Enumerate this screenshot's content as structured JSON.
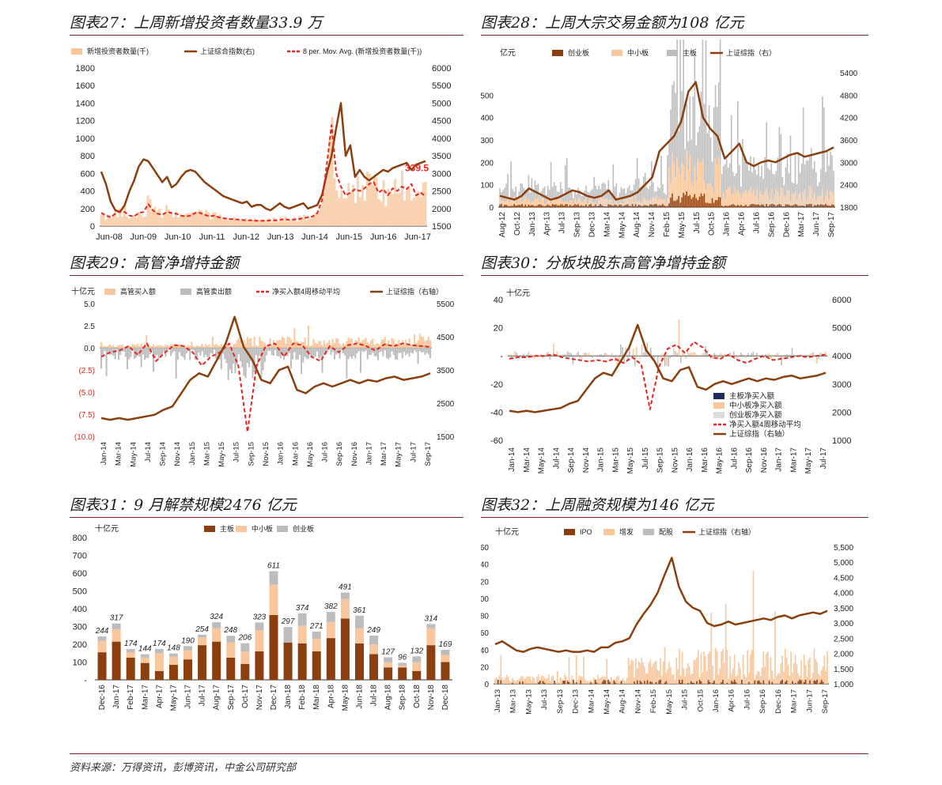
{
  "colors": {
    "brown": "#8b3f0f",
    "red": "#e8251c",
    "peach": "#f8c79d",
    "gray": "#bdbdbd",
    "navy": "#1f2b5e",
    "rule": "#7a1f1f"
  },
  "source": "资料来源：万得资讯，彭博资讯，中金公司研究部",
  "chart_data": [
    {
      "id": "p1",
      "type": "line",
      "title": "图表27：上周新增投资者数量33.9 万",
      "legend": [
        "新增投资者数量(千)",
        "上证综合指数(右)",
        "8 per. Mov. Avg. (新增投资者数量(千))"
      ],
      "x_ticks": [
        "Jun-08",
        "Jun-09",
        "Jun-10",
        "Jun-11",
        "Jun-12",
        "Jun-13",
        "Jun-14",
        "Jun-15",
        "Jun-16",
        "Jun-17"
      ],
      "y_left": [
        0,
        200,
        400,
        600,
        800,
        1000,
        1200,
        1400,
        1600,
        1800
      ],
      "y_right": [
        1500,
        2000,
        2500,
        3000,
        3500,
        4000,
        4500,
        5000,
        5500,
        6000
      ],
      "ylim_left": [
        0,
        1800
      ],
      "ylim_right": [
        1500,
        6000
      ],
      "annotation": "339.5",
      "series": [
        {
          "name": "上证综合指数(右)",
          "axis": "right",
          "values": [
            3050,
            2700,
            2200,
            1950,
            1900,
            2100,
            2500,
            2800,
            3200,
            3400,
            3350,
            3150,
            2950,
            2750,
            2900,
            2600,
            2700,
            2900,
            3050,
            3100,
            3050,
            2900,
            2750,
            2650,
            2550,
            2450,
            2350,
            2300,
            2250,
            2200,
            2150,
            2200,
            2050,
            2100,
            2100,
            2000,
            1950,
            2050,
            2150,
            2050,
            2000,
            2050,
            2100,
            2150,
            2000,
            2050,
            2100,
            2400,
            3000,
            3500,
            4300,
            5000,
            3500,
            3800,
            2900,
            3100,
            2900,
            2800,
            2900,
            3000,
            3100,
            3050,
            3150,
            3200,
            3250,
            3300,
            3100,
            3250,
            3300,
            3350
          ]
        },
        {
          "name": "8 per. Mov. Avg. (新增投资者数量(千))",
          "axis": "left",
          "values": [
            150,
            120,
            100,
            140,
            170,
            160,
            120,
            110,
            150,
            160,
            250,
            180,
            140,
            130,
            160,
            150,
            140,
            120,
            110,
            120,
            150,
            150,
            130,
            110,
            120,
            100,
            90,
            80,
            80,
            75,
            70,
            65,
            65,
            60,
            60,
            60,
            65,
            65,
            70,
            80,
            70,
            75,
            80,
            90,
            100,
            110,
            150,
            300,
            700,
            1150,
            600,
            450,
            350,
            380,
            420,
            400,
            430,
            480,
            500,
            380,
            420,
            350,
            430,
            400,
            450,
            420,
            480,
            350,
            380,
            339.5
          ]
        }
      ]
    },
    {
      "id": "p2",
      "type": "bar",
      "title": "图表28：上周大宗交易金额为108 亿元",
      "unit": "亿元",
      "legend": [
        "创业板",
        "中小板",
        "主板",
        "上证综指（右）"
      ],
      "x_ticks": [
        "Aug-12",
        "Oct-12",
        "Jan-13",
        "Apr-13",
        "Jul-13",
        "Sep-13",
        "Dec-13",
        "Mar-14",
        "May-14",
        "Aug-14",
        "Nov-14",
        "Feb-15",
        "May-15",
        "Jul-15",
        "Oct-15",
        "Jan-16",
        "Apr-16",
        "Jul-16",
        "Sep-16",
        "Dec-16",
        "Mar-17",
        "Jun-17",
        "Sep-17"
      ],
      "y_left": [
        0,
        100,
        200,
        300,
        400,
        500
      ],
      "y_right": [
        1800,
        2400,
        3000,
        3600,
        4200,
        4800,
        5400
      ],
      "ylim_left": [
        0,
        600
      ],
      "ylim_right": [
        1800,
        5400
      ],
      "series": [
        {
          "name": "上证综指（右）",
          "axis": "right",
          "values": [
            2100,
            2050,
            2000,
            2100,
            2300,
            2200,
            2100,
            2000,
            2050,
            2150,
            2250,
            2200,
            2100,
            2050,
            2100,
            2250,
            2000,
            2050,
            2100,
            2200,
            2400,
            2600,
            3300,
            3500,
            3700,
            4100,
            4900,
            5150,
            4200,
            3900,
            3700,
            3100,
            3300,
            3500,
            3000,
            2900,
            3000,
            3050,
            3000,
            3100,
            3200,
            3250,
            3150,
            3200,
            3250,
            3300,
            3400
          ]
        }
      ]
    },
    {
      "id": "p3",
      "type": "bar",
      "title": "图表29：高管净增持金额",
      "unit": "十亿元",
      "legend": [
        "高管买入额",
        "高管卖出额",
        "净买入额4周移动平均",
        "上证综指（右轴）"
      ],
      "x_ticks": [
        "Jan-14",
        "Mar-14",
        "May-14",
        "Jul-14",
        "Sep-14",
        "Nov-14",
        "Jan-15",
        "Mar-15",
        "May-15",
        "Jul-15",
        "Sep-15",
        "Nov-15",
        "Jan-16",
        "Mar-16",
        "May-16",
        "Jul-16",
        "Sep-16",
        "Nov-16",
        "Jan-17",
        "Mar-17",
        "May-17",
        "Jul-17",
        "Sep-17"
      ],
      "y_left": [
        "5.0",
        "2.5",
        "0.0",
        "(2.5)",
        "(5.0)",
        "(7.5)",
        "(10.0)"
      ],
      "y_right": [
        1500,
        2500,
        3500,
        4500,
        5500
      ],
      "ylim_left": [
        -10,
        5
      ],
      "ylim_right": [
        1500,
        5500
      ],
      "series": [
        {
          "name": "上证综指（右轴）",
          "axis": "right",
          "values": [
            2050,
            2000,
            2050,
            2000,
            2050,
            2100,
            2150,
            2300,
            2400,
            2800,
            3200,
            3400,
            3300,
            3800,
            4300,
            5100,
            4200,
            3800,
            3200,
            3100,
            3500,
            3600,
            2900,
            2800,
            3000,
            3100,
            3000,
            3100,
            3200,
            3100,
            3200,
            3150,
            3250,
            3300,
            3200,
            3250,
            3300,
            3400
          ]
        },
        {
          "name": "净买入额4周移动平均",
          "axis": "left",
          "values": [
            -1,
            -0.5,
            -0.3,
            0.2,
            -0.8,
            0.5,
            -1.5,
            -0.5,
            0.3,
            0.2,
            -0.5,
            -2,
            -1,
            -0.5,
            0.5,
            -2,
            -9.5,
            -2,
            0.2,
            0.5,
            -1,
            0.5,
            0.3,
            -1,
            -1.5,
            0.2,
            -0.5,
            0.3,
            0.5,
            0.2,
            -0.3,
            0.4,
            0.2,
            0.5,
            0.3,
            0.2,
            0.1
          ]
        }
      ]
    },
    {
      "id": "p4",
      "type": "bar",
      "title": "图表30：分板块股东高管净增持金额",
      "unit": "十亿元",
      "legend": [
        "主板净买入额",
        "中小板净买入额",
        "创业板净买入额",
        "净买入额4周移动平均",
        "上证综指（右轴）"
      ],
      "x_ticks": [
        "Jan-14",
        "Mar-14",
        "May-14",
        "Jul-14",
        "Sep-14",
        "Nov-14",
        "Jan-15",
        "Mar-15",
        "May-15",
        "Jul-15",
        "Sep-15",
        "Nov-15",
        "Jan-16",
        "Mar-16",
        "May-16",
        "Jul-16",
        "Sep-16",
        "Nov-16",
        "Jan-17",
        "Mar-17",
        "May-17",
        "Jul-17"
      ],
      "y_left": [
        "40",
        "20",
        "-",
        "-20",
        "-40",
        "-60"
      ],
      "y_right": [
        1000,
        2000,
        3000,
        4000,
        5000,
        6000
      ],
      "ylim_left": [
        -60,
        40
      ],
      "ylim_right": [
        1000,
        6000
      ],
      "series": [
        {
          "name": "上证综指（右轴）",
          "axis": "right",
          "values": [
            2050,
            2000,
            2050,
            2000,
            2050,
            2100,
            2150,
            2300,
            2400,
            2800,
            3200,
            3400,
            3300,
            3800,
            4300,
            5100,
            4200,
            3800,
            3200,
            3100,
            3500,
            3600,
            2900,
            2800,
            3000,
            3100,
            3000,
            3100,
            3200,
            3100,
            3200,
            3150,
            3250,
            3300,
            3200,
            3250,
            3300,
            3400
          ]
        },
        {
          "name": "净买入额4周移动平均",
          "axis": "left",
          "values": [
            -2,
            -1,
            -1,
            0,
            0,
            1,
            -1,
            -2,
            -3,
            -4,
            -3,
            -4,
            -2,
            -5,
            -1,
            -6,
            -38,
            -8,
            5,
            8,
            2,
            10,
            6,
            -1,
            -2,
            1,
            -3,
            -5,
            -2,
            0,
            -3,
            -2,
            -1,
            0,
            -1,
            0,
            1
          ]
        }
      ]
    },
    {
      "id": "p5",
      "type": "bar",
      "title": "图表31：9 月解禁规模2476 亿元",
      "unit": "十亿元",
      "legend": [
        "主板",
        "中小板",
        "创业板"
      ],
      "categories": [
        "Dec-16",
        "Jan-17",
        "Feb-17",
        "Mar-17",
        "Apr-17",
        "May-17",
        "Jun-17",
        "Jul-17",
        "Aug-17",
        "Sep-17",
        "Oct-17",
        "Nov-17",
        "Dec-17",
        "Jan-18",
        "Feb-18",
        "Mar-18",
        "Apr-18",
        "May-18",
        "Jun-18",
        "Jul-18",
        "Aug-18",
        "Sep-18",
        "Oct-18",
        "Nov-18",
        "Dec-18"
      ],
      "totals": [
        "244",
        "317",
        "174",
        "144",
        "174",
        "148",
        "190",
        "254",
        "324",
        "248",
        "206",
        "323",
        "611",
        "297",
        "374",
        "271",
        "382",
        "491",
        "361",
        "249",
        "127",
        "96",
        "132",
        "314",
        "169"
      ],
      "y_ticks": [
        "800",
        "700",
        "600",
        "500",
        "400",
        "300",
        "200",
        "100",
        "-"
      ],
      "ylim": [
        0,
        800
      ],
      "series": [
        {
          "name": "主板",
          "values": [
            155,
            215,
            125,
            95,
            50,
            85,
            115,
            195,
            215,
            125,
            90,
            160,
            365,
            210,
            205,
            160,
            235,
            345,
            205,
            145,
            70,
            70,
            50,
            195,
            100
          ]
        },
        {
          "name": "中小板",
          "values": [
            65,
            70,
            30,
            30,
            100,
            45,
            50,
            45,
            75,
            85,
            70,
            120,
            170,
            0,
            100,
            70,
            90,
            110,
            85,
            55,
            30,
            10,
            50,
            95,
            40
          ]
        },
        {
          "name": "创业板",
          "values": [
            24,
            32,
            19,
            19,
            24,
            18,
            25,
            14,
            34,
            38,
            46,
            43,
            76,
            87,
            69,
            41,
            57,
            36,
            71,
            49,
            27,
            16,
            32,
            24,
            29
          ]
        }
      ]
    },
    {
      "id": "p6",
      "type": "bar",
      "title": "图表32：上周融资规模为146 亿元",
      "unit": "十亿元",
      "legend": [
        "IPO",
        "增发",
        "配股",
        "上证综指（右轴）"
      ],
      "x_ticks": [
        "Jan-13",
        "Mar-13",
        "May-13",
        "Jul-13",
        "Sep-13",
        "Dec-13",
        "Mar-14",
        "May-14",
        "Aug-14",
        "Nov-14",
        "Feb-15",
        "May-15",
        "Jul-15",
        "Oct-15",
        "Jan-16",
        "Apr-16",
        "Jul-16",
        "Sep-16",
        "Dec-16",
        "Mar-17",
        "Jun-17",
        "Sep-17"
      ],
      "y_left": [
        0,
        20,
        40,
        60,
        80,
        100,
        120,
        140,
        160
      ],
      "y_right": [
        "1,000",
        "1,500",
        "2,000",
        "2,500",
        "3,000",
        "3,500",
        "4,000",
        "4,500",
        "5,000",
        "5,500"
      ],
      "ylim_left": [
        0,
        160
      ],
      "ylim_right": [
        1000,
        5500
      ],
      "series": [
        {
          "name": "上证综指（右轴）",
          "axis": "right",
          "values": [
            2300,
            2400,
            2250,
            2100,
            2050,
            2150,
            2200,
            2150,
            2100,
            2050,
            2100,
            2050,
            2050,
            2100,
            2050,
            2200,
            2200,
            2350,
            2400,
            2500,
            2950,
            3300,
            3600,
            4000,
            4600,
            5150,
            4200,
            3700,
            3500,
            3400,
            3000,
            2900,
            2950,
            3050,
            2950,
            3000,
            3050,
            3100,
            3150,
            3100,
            3200,
            3250,
            3150,
            3250,
            3300,
            3350,
            3300,
            3400
          ]
        }
      ]
    }
  ]
}
